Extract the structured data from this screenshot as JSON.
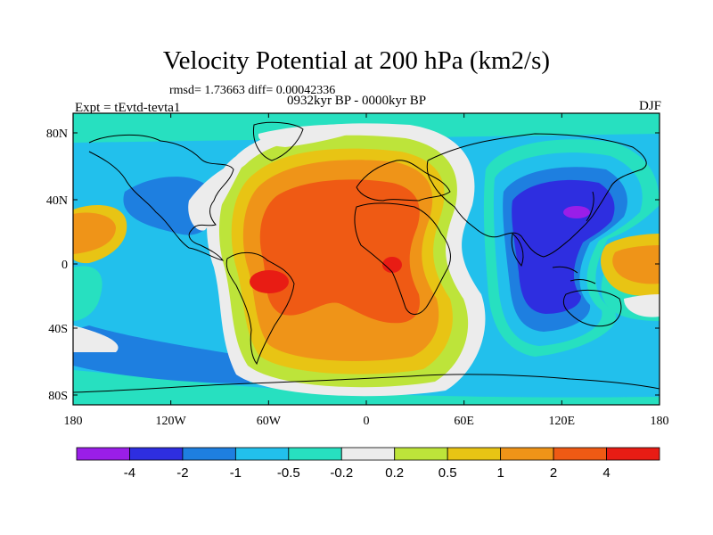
{
  "title": "Velocity Potential at 200 hPa (km2/s)",
  "stats": "rmsd= 1.73663 diff= 0.00042336",
  "period": "0932kyr BP - 0000kyr BP",
  "experiment": "Expt = tEvtd-tevta1",
  "season": "DJF",
  "map": {
    "lon_ticks": [
      "180",
      "120W",
      "60W",
      "0",
      "60E",
      "120E",
      "180"
    ],
    "lat_ticks": [
      "80N",
      "40N",
      "0",
      "40S",
      "80S"
    ]
  },
  "colorbar": {
    "colors": [
      "#9a1ee8",
      "#2e2ee0",
      "#1e7fe0",
      "#22c0ec",
      "#27e0c0",
      "#ececec",
      "#bde43a",
      "#e8c414",
      "#ef9418",
      "#ef5a14",
      "#e81c14"
    ],
    "labels": [
      "-4",
      "-2",
      "-1",
      "-0.5",
      "-0.2",
      "0.2",
      "0.5",
      "1",
      "2",
      "4"
    ]
  }
}
